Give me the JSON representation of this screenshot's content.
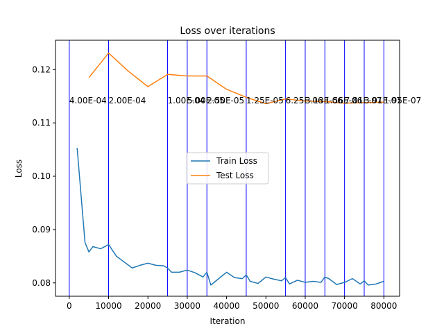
{
  "chart_data": {
    "type": "line",
    "title": "Loss over iterations",
    "xlabel": "Iteration",
    "ylabel": "Loss",
    "xlim": [
      -3500,
      84000
    ],
    "ylim": [
      0.0775,
      0.1255
    ],
    "x_ticks": [
      0,
      10000,
      20000,
      30000,
      40000,
      50000,
      60000,
      70000,
      80000
    ],
    "x_tick_labels": [
      "0",
      "10000",
      "20000",
      "30000",
      "40000",
      "50000",
      "60000",
      "70000",
      "80000"
    ],
    "y_ticks": [
      0.08,
      0.09,
      0.1,
      0.11,
      0.12
    ],
    "y_tick_labels": [
      "0.08",
      "0.09",
      "0.10",
      "0.11",
      "0.12"
    ],
    "grid": false,
    "legend_position": "center-right",
    "series": [
      {
        "name": "Train Loss",
        "color": "#1f77b4",
        "x": [
          2000,
          4000,
          5000,
          6000,
          8000,
          10000,
          12000,
          14000,
          16000,
          18000,
          20000,
          22000,
          24000,
          25000,
          26000,
          28000,
          30000,
          32000,
          34000,
          35000,
          36000,
          38000,
          40000,
          42000,
          44000,
          45000,
          46000,
          48000,
          50000,
          52000,
          54000,
          55000,
          56000,
          58000,
          60000,
          62000,
          64000,
          65000,
          66000,
          68000,
          70000,
          72000,
          74000,
          75000,
          76000,
          78000,
          80000
        ],
        "y": [
          0.1053,
          0.0876,
          0.0858,
          0.0868,
          0.0864,
          0.0872,
          0.085,
          0.0839,
          0.0828,
          0.0833,
          0.0837,
          0.0833,
          0.0832,
          0.0828,
          0.082,
          0.082,
          0.0824,
          0.0819,
          0.0811,
          0.082,
          0.0796,
          0.0808,
          0.082,
          0.081,
          0.0808,
          0.0815,
          0.0803,
          0.0799,
          0.0811,
          0.0807,
          0.0804,
          0.081,
          0.0798,
          0.0805,
          0.0801,
          0.0803,
          0.0801,
          0.0811,
          0.0808,
          0.0797,
          0.0801,
          0.0808,
          0.0798,
          0.0804,
          0.0796,
          0.0798,
          0.0803
        ]
      },
      {
        "name": "Test Loss",
        "color": "#ff7f0e",
        "x": [
          5000,
          10000,
          15000,
          20000,
          25000,
          30000,
          35000,
          40000,
          45000,
          50000,
          55000,
          60000,
          65000,
          70000,
          75000,
          80000
        ],
        "y": [
          0.1185,
          0.1231,
          0.1197,
          0.1168,
          0.1191,
          0.1188,
          0.1188,
          0.1163,
          0.1148,
          0.1136,
          0.1145,
          0.1141,
          0.114,
          0.1137,
          0.1138,
          0.1139
        ]
      }
    ],
    "vlines": {
      "color": "#0000ff",
      "x": [
        0,
        10000,
        25000,
        30000,
        35000,
        45000,
        55000,
        60000,
        65000,
        70000,
        75000,
        80000
      ]
    },
    "annotations": [
      {
        "x": 0,
        "y": 0.1142,
        "text": "4.00E-04"
      },
      {
        "x": 10000,
        "y": 0.1142,
        "text": "2.00E-04"
      },
      {
        "x": 25000,
        "y": 0.1142,
        "text": "1.00E-04"
      },
      {
        "x": 30000,
        "y": 0.1142,
        "text": "5.00E-05"
      },
      {
        "x": 35000,
        "y": 0.1142,
        "text": "2.50E-05"
      },
      {
        "x": 45000,
        "y": 0.1142,
        "text": "1.25E-05"
      },
      {
        "x": 55000,
        "y": 0.1142,
        "text": "6.25E-06"
      },
      {
        "x": 60000,
        "y": 0.1142,
        "text": "3.13E-06"
      },
      {
        "x": 65000,
        "y": 0.1142,
        "text": "1.56E-06"
      },
      {
        "x": 70000,
        "y": 0.1142,
        "text": "7.81E-07"
      },
      {
        "x": 75000,
        "y": 0.1142,
        "text": "3.91E-07"
      },
      {
        "x": 80000,
        "y": 0.1142,
        "text": "1.95E-07"
      }
    ]
  }
}
